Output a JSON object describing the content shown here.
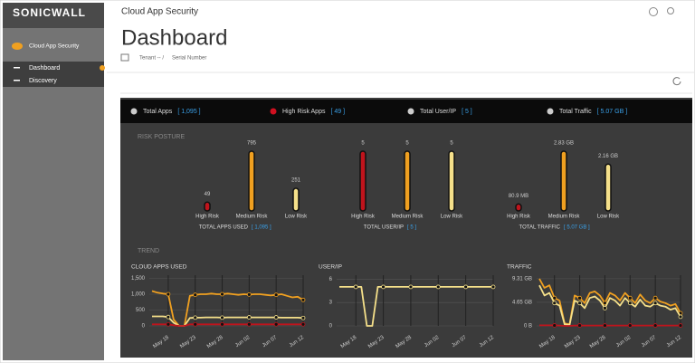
{
  "sidebar": {
    "logo": "SONICWALL",
    "product": "Cloud App Security",
    "items": [
      "Dashboard",
      "Discovery"
    ]
  },
  "header": {
    "app": "Cloud App Security",
    "title": "Dashboard",
    "breadcrumb": [
      "Tenant -- /",
      "Serial Number"
    ]
  },
  "summary": [
    {
      "label": "Total Apps",
      "value": "[ 1,095 ]"
    },
    {
      "label": "High Risk Apps",
      "value": "[ 49 ]"
    },
    {
      "label": "Total User/IP",
      "value": "[ 5 ]"
    },
    {
      "label": "Total Traffic",
      "value": "[ 5.07 GB ]"
    }
  ],
  "sections": [
    "RISK POSTURE",
    "TREND"
  ],
  "chart_data": [
    {
      "type": "bar",
      "categories": [
        "High Risk",
        "Medium Risk",
        "Low Risk"
      ],
      "values": [
        49,
        795,
        251
      ],
      "colors": [
        "#c0141c",
        "#f0a020",
        "#f5e08a"
      ],
      "xlabel": "TOTAL APPS USED",
      "xlabel_value": "[ 1,095 ]"
    },
    {
      "type": "bar",
      "categories": [
        "High Risk",
        "Medium Risk",
        "Low Risk"
      ],
      "values": [
        5,
        5,
        5
      ],
      "colors": [
        "#c0141c",
        "#f0a020",
        "#f5e08a"
      ],
      "xlabel": "TOTAL USER/IP",
      "xlabel_value": "[ 5 ]"
    },
    {
      "type": "bar",
      "categories": [
        "High Risk",
        "Medium Risk",
        "Low Risk"
      ],
      "values": [
        0.0809,
        2.83,
        2.16
      ],
      "value_labels": [
        "80.9 MB",
        "2.83 GB",
        "2.16 GB"
      ],
      "colors": [
        "#c0141c",
        "#f0a020",
        "#f5e08a"
      ],
      "xlabel": "TOTAL TRAFFIC",
      "xlabel_value": "[ 5.07 GB ]"
    },
    {
      "type": "line",
      "title": "CLOUD APPS USED",
      "categories": [
        null,
        null,
        null,
        "May 18",
        null,
        null,
        null,
        null,
        "May 23",
        null,
        null,
        null,
        null,
        "May 28",
        null,
        null,
        null,
        null,
        "Jun 02",
        null,
        null,
        null,
        null,
        "Jun 07",
        null,
        null,
        null,
        null,
        "Jun 12"
      ],
      "series": [
        {
          "name": "Total",
          "color": "#f0a020",
          "values": [
            1100,
            1050,
            1020,
            1000,
            200,
            0,
            0,
            950,
            980,
            1000,
            1000,
            1020,
            1000,
            1000,
            1020,
            1000,
            980,
            1000,
            990,
            1000,
            1000,
            980,
            960,
            980,
            1000,
            950,
            900,
            920,
            820
          ]
        },
        {
          "name": "Low Risk",
          "color": "#f5e08a",
          "values": [
            300,
            300,
            300,
            280,
            100,
            0,
            0,
            250,
            260,
            260,
            270,
            270,
            270,
            260,
            270,
            270,
            270,
            270,
            270,
            270,
            270,
            270,
            270,
            270,
            260,
            260,
            260,
            260,
            250
          ]
        },
        {
          "name": "High Risk",
          "color": "#c0141c",
          "values": [
            50,
            50,
            50,
            50,
            20,
            0,
            0,
            49,
            49,
            49,
            49,
            49,
            49,
            49,
            49,
            49,
            49,
            49,
            49,
            49,
            49,
            49,
            49,
            49,
            49,
            49,
            49,
            49,
            49
          ]
        }
      ],
      "ylim": [
        0,
        1600
      ],
      "yticks": [
        0,
        500,
        {
          "value": 1000,
          "label": "1,000"
        },
        {
          "value": 1500,
          "label": "1,500"
        }
      ]
    },
    {
      "type": "line",
      "title": "USER/IP",
      "categories": [
        null,
        null,
        null,
        "May 18",
        null,
        null,
        null,
        null,
        "May 23",
        null,
        null,
        null,
        null,
        "May 28",
        null,
        null,
        null,
        null,
        "Jun 02",
        null,
        null,
        null,
        null,
        "Jun 07",
        null,
        null,
        null,
        null,
        "Jun 12"
      ],
      "series": [
        {
          "name": "User/IP",
          "color": "#f5e08a",
          "values": [
            5,
            5,
            5,
            5,
            5,
            0,
            0,
            5,
            5,
            5,
            5,
            5,
            5,
            5,
            5,
            5,
            5,
            5,
            5,
            5,
            5,
            5,
            5,
            5,
            5,
            5,
            5,
            5,
            5
          ]
        }
      ],
      "ylim": [
        0,
        6.5
      ],
      "yticks": [
        0,
        3,
        6
      ]
    },
    {
      "type": "line",
      "title": "TRAFFIC",
      "categories": [
        null,
        null,
        null,
        "May 18",
        null,
        null,
        null,
        null,
        "May 23",
        null,
        null,
        null,
        null,
        "May 28",
        null,
        null,
        null,
        null,
        "Jun 02",
        null,
        null,
        null,
        null,
        "Jun 07",
        null,
        null,
        null,
        null,
        "Jun 12"
      ],
      "series": [
        {
          "name": "Total",
          "color": "#f0a020",
          "values": [
            9.3,
            7.5,
            8,
            5.5,
            5,
            0.5,
            0.3,
            6,
            5.5,
            4.5,
            6.5,
            6.8,
            6,
            4.5,
            6.5,
            6,
            5,
            6.5,
            5.5,
            4.5,
            6.2,
            5,
            4.5,
            5.5,
            4.8,
            4.5,
            4,
            4.3,
            2.5
          ]
        },
        {
          "name": "Medium",
          "color": "#f5e08a",
          "values": [
            8,
            6,
            6.5,
            4.5,
            4,
            0.3,
            0.2,
            5,
            4.5,
            3.5,
            5.5,
            5.8,
            5,
            3.5,
            5.5,
            5,
            4,
            5.5,
            4.5,
            3.8,
            5.2,
            4,
            3.8,
            4.5,
            4,
            3.8,
            3.2,
            3.5,
            1.8
          ]
        },
        {
          "name": "High",
          "color": "#c0141c",
          "values": [
            0.1,
            0.1,
            0.1,
            0.1,
            0.08,
            0,
            0,
            0.08,
            0.08,
            0.08,
            0.08,
            0.08,
            0.08,
            0.08,
            0.08,
            0.08,
            0.08,
            0.08,
            0.08,
            0.08,
            0.08,
            0.08,
            0.08,
            0.08,
            0.08,
            0.08,
            0.08,
            0.08,
            0.08
          ]
        }
      ],
      "ylim": [
        0,
        10
      ],
      "yticks": [
        {
          "value": 0,
          "label": "0 B"
        },
        {
          "value": 4.65,
          "label": "4.65 GB"
        },
        {
          "value": 9.31,
          "label": "9.31 GB"
        }
      ]
    }
  ]
}
